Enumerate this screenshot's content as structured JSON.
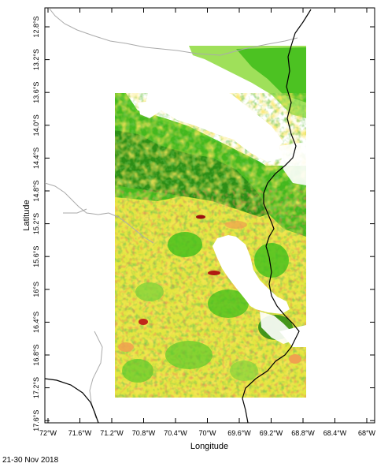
{
  "map": {
    "x_axis_title": "Longitude",
    "y_axis_title": "Latitude",
    "date_label": "21-30 Nov 2018",
    "lon_ticks": [
      "72°W",
      "71.6°W",
      "71.2°W",
      "70.8°W",
      "70.4°W",
      "70°W",
      "69.6°W",
      "69.2°W",
      "68.8°W",
      "68.4°W",
      "68°W"
    ],
    "lat_ticks": [
      "12.8°S",
      "13.2°S",
      "13.6°S",
      "14.0°S",
      "14.4°S",
      "14.8°S",
      "15.2°S",
      "15.6°S",
      "16°S",
      "16.4°S",
      "16.8°S",
      "17.2°S",
      "17.6°S"
    ],
    "colors": {
      "dark_green": "#2a8a14",
      "green": "#3fbf1a",
      "light_green": "#9be05a",
      "yellow": "#e6e81a",
      "pale_yellow": "#f2e45a",
      "orange": "#f0a050",
      "red": "#d0301e",
      "dark_red": "#9a1010",
      "lake": "#ffffff",
      "boundary_gray": "#aaaaaa",
      "boundary_black": "#000000"
    }
  }
}
